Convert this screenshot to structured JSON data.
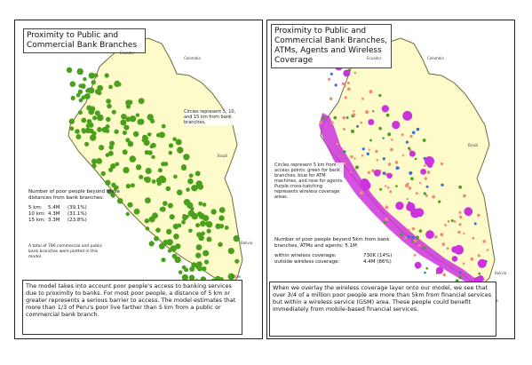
{
  "left": {
    "title": "Proximity to Public and Commercial Bank Branches",
    "circle_note": "Circles represent 5, 10, and 15 km from bank branches.",
    "stats_header": "Number of poor people beyond these distances from bank branches:",
    "stats": [
      {
        "label": "5 km:",
        "value": "5.4M",
        "pct": "(39.1%)"
      },
      {
        "label": "10 km:",
        "value": "4.3M",
        "pct": "(31.1%)"
      },
      {
        "label": "15 km:",
        "value": "3.3M",
        "pct": "(23.8%)"
      }
    ],
    "footnote": "A total of 786 commercial and public bank branches were plotted in this model.",
    "countries": [
      "Colombia",
      "Ecuador",
      "Brazil",
      "Bolivia",
      "Chile"
    ],
    "bottom_text": "The model takes into account poor people's access to banking services due to proximity to banks. For most poor people, a distance of 5 km or greater represents a serious barrier to access. The model estimates that more than 1/3 of Peru's poor live farther than 5 km from a public or commercial bank branch."
  },
  "right": {
    "title": "Proximity to Public and Commercial Bank Branches, ATMs, Agents and Wireless Coverage",
    "circle_note": "Circles represent 5 km from access points: green for bank branches, blue for ATM machines, and rose for agents. Purple cross-hatching represents wireless coverage areas.",
    "stats_header": "Number of poor people beyond 5km from bank branches, ATMs and agents:",
    "stats_total": "5.1M",
    "stats": [
      {
        "label": "within wireless coverage:",
        "value": "730K (14%)"
      },
      {
        "label": "outside wireless coverage:",
        "value": "4.4M (86%)"
      }
    ],
    "countries": [
      "Colombia",
      "Ecuador",
      "Brazil",
      "Bolivia",
      "Chile"
    ],
    "bottom_text": "When we overlay the wireless coverage layer onto our model, we see that over 3/4 of a million poor people are more than 5km from financial services but within a wireless service (GSM) area. These people could benefit immediately from mobile-based financial services."
  },
  "colors": {
    "land": "#fdfbc9",
    "border": "#6b6b3a",
    "bank": "#4aa01c",
    "atm": "#3a6fd8",
    "agent": "#f08a7a",
    "wireless": "#cc33dd"
  }
}
